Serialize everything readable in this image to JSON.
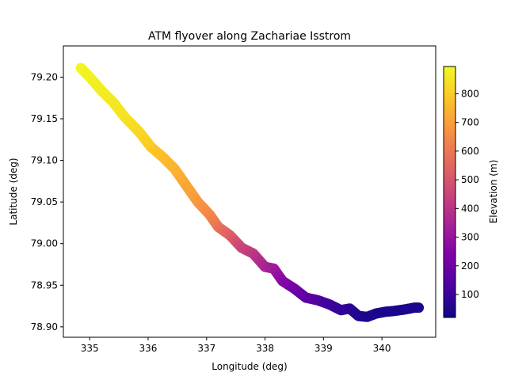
{
  "chart_data": {
    "type": "scatter",
    "title": "ATM flyover along Zachariae Isstrom",
    "xlabel": "Longitude (deg)",
    "ylabel": "Latitude (deg)",
    "xlim": [
      334.55,
      340.92
    ],
    "ylim": [
      78.8875,
      79.2375
    ],
    "xticks": [
      335,
      336,
      337,
      338,
      339,
      340
    ],
    "xtick_labels": [
      "335",
      "336",
      "337",
      "338",
      "339",
      "340"
    ],
    "yticks": [
      78.9,
      78.95,
      79.0,
      79.05,
      79.1,
      79.15,
      79.2
    ],
    "ytick_labels": [
      "78.90",
      "78.95",
      "79.00",
      "79.05",
      "79.10",
      "79.15",
      "79.20"
    ],
    "grid": false,
    "colormap": "plasma",
    "colorbar": {
      "label": "Elevation (m)",
      "range": [
        20,
        895
      ],
      "ticks": [
        100,
        200,
        300,
        400,
        500,
        600,
        700,
        800
      ],
      "tick_labels": [
        "100",
        "200",
        "300",
        "400",
        "500",
        "600",
        "700",
        "800"
      ]
    },
    "series": [
      {
        "points": [
          {
            "lon": 334.85,
            "lat": 79.211,
            "elev": 890
          },
          {
            "lon": 335.0,
            "lat": 79.2,
            "elev": 880
          },
          {
            "lon": 335.2,
            "lat": 79.184,
            "elev": 870
          },
          {
            "lon": 335.4,
            "lat": 79.17,
            "elev": 860
          },
          {
            "lon": 335.6,
            "lat": 79.152,
            "elev": 850
          },
          {
            "lon": 335.85,
            "lat": 79.134,
            "elev": 830
          },
          {
            "lon": 336.05,
            "lat": 79.116,
            "elev": 800
          },
          {
            "lon": 336.25,
            "lat": 79.104,
            "elev": 770
          },
          {
            "lon": 336.45,
            "lat": 79.09,
            "elev": 750
          },
          {
            "lon": 336.65,
            "lat": 79.07,
            "elev": 720
          },
          {
            "lon": 336.85,
            "lat": 79.05,
            "elev": 690
          },
          {
            "lon": 337.05,
            "lat": 79.035,
            "elev": 650
          },
          {
            "lon": 337.2,
            "lat": 79.02,
            "elev": 600
          },
          {
            "lon": 337.4,
            "lat": 79.01,
            "elev": 540
          },
          {
            "lon": 337.6,
            "lat": 78.995,
            "elev": 460
          },
          {
            "lon": 337.8,
            "lat": 78.988,
            "elev": 420
          },
          {
            "lon": 338.0,
            "lat": 78.972,
            "elev": 360
          },
          {
            "lon": 338.15,
            "lat": 78.97,
            "elev": 330
          },
          {
            "lon": 338.3,
            "lat": 78.955,
            "elev": 270
          },
          {
            "lon": 338.5,
            "lat": 78.946,
            "elev": 220
          },
          {
            "lon": 338.7,
            "lat": 78.935,
            "elev": 180
          },
          {
            "lon": 338.9,
            "lat": 78.932,
            "elev": 150
          },
          {
            "lon": 339.1,
            "lat": 78.927,
            "elev": 110
          },
          {
            "lon": 339.3,
            "lat": 78.92,
            "elev": 90
          },
          {
            "lon": 339.45,
            "lat": 78.922,
            "elev": 80
          },
          {
            "lon": 339.6,
            "lat": 78.913,
            "elev": 60
          },
          {
            "lon": 339.75,
            "lat": 78.912,
            "elev": 50
          },
          {
            "lon": 339.9,
            "lat": 78.916,
            "elev": 45
          },
          {
            "lon": 340.05,
            "lat": 78.918,
            "elev": 45
          },
          {
            "lon": 340.2,
            "lat": 78.919,
            "elev": 45
          },
          {
            "lon": 340.4,
            "lat": 78.921,
            "elev": 45
          },
          {
            "lon": 340.55,
            "lat": 78.923,
            "elev": 45
          },
          {
            "lon": 340.65,
            "lat": 78.923,
            "elev": 45
          }
        ]
      }
    ]
  }
}
